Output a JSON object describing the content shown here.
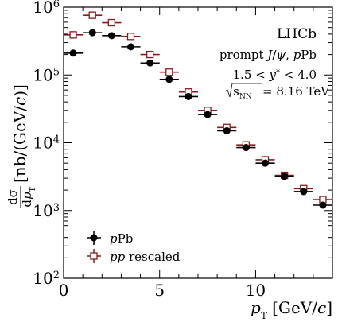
{
  "chart_data": {
    "type": "scatter",
    "xlabel": "p_T [GeV/c]",
    "ylabel": "dσ/dp_T [nb/(GeV/c)]",
    "x_scale": "linear",
    "y_scale": "log",
    "xlim": [
      0,
      14
    ],
    "ylim": [
      100,
      1000000
    ],
    "x_ticks": [
      "0",
      "5",
      "10"
    ],
    "y_ticks": [
      "10^2",
      "10^3",
      "10^4",
      "10^5",
      "10^6"
    ],
    "annotations": [
      "LHCb",
      "prompt J/ψ, pPb",
      "1.5 < y* < 4.0",
      "√sNN = 8.16 TeV"
    ],
    "legend_position": "bottom-left",
    "series": [
      {
        "name": "pPb",
        "marker": "filled-circle",
        "color": "#000000",
        "x": [
          0.5,
          1.5,
          2.5,
          3.5,
          4.5,
          5.5,
          6.5,
          7.5,
          8.5,
          9.5,
          10.5,
          11.5,
          12.5,
          13.5
        ],
        "x_err": [
          0.5,
          0.5,
          0.5,
          0.5,
          0.5,
          0.5,
          0.5,
          0.5,
          0.5,
          0.5,
          0.5,
          0.5,
          0.5,
          0.5
        ],
        "values": [
          210000,
          420000,
          380000,
          260000,
          150000,
          86000,
          48000,
          26000,
          15000,
          8500,
          5000,
          3200,
          1900,
          1200
        ]
      },
      {
        "name": "pp rescaled",
        "marker": "open-square",
        "color": "#8b1a1a",
        "x": [
          0.5,
          1.5,
          2.5,
          3.5,
          4.5,
          5.5,
          6.5,
          7.5,
          8.5,
          9.5,
          10.5,
          11.5,
          12.5,
          13.5
        ],
        "x_err": [
          0.5,
          0.5,
          0.5,
          0.5,
          0.5,
          0.5,
          0.5,
          0.5,
          0.5,
          0.5,
          0.5,
          0.5,
          0.5,
          0.5
        ],
        "values": [
          390000,
          760000,
          590000,
          370000,
          200000,
          110000,
          56000,
          30000,
          16800,
          9300,
          5600,
          3300,
          2100,
          1450
        ]
      }
    ]
  }
}
